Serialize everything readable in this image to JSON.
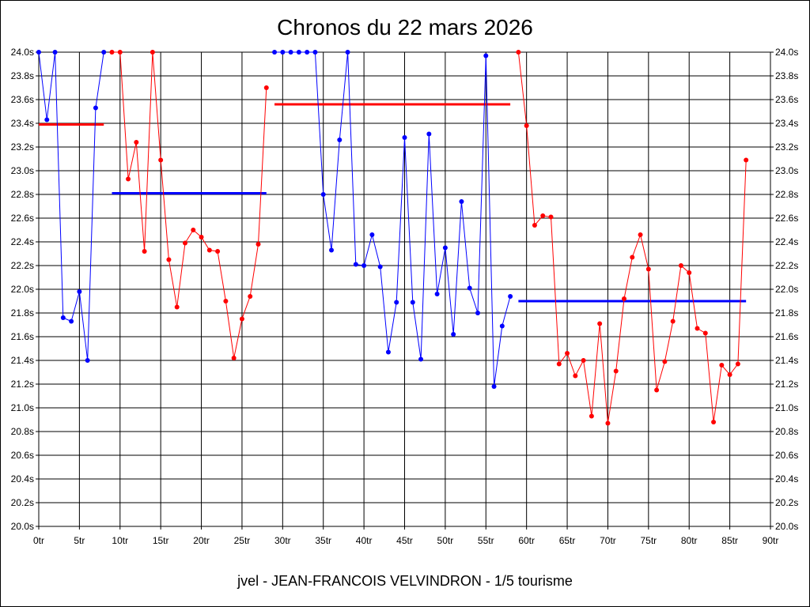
{
  "chart_data": {
    "type": "line",
    "title": "Chronos du 22 mars 2026",
    "footer": "jvel - JEAN-FRANCOIS VELVINDRON - 1/5 tourisme",
    "xlabel": "",
    "ylabel": "",
    "xlim": [
      0,
      90
    ],
    "ylim": [
      20.0,
      24.0
    ],
    "x_ticks": [
      0,
      5,
      10,
      15,
      20,
      25,
      30,
      35,
      40,
      45,
      50,
      55,
      60,
      65,
      70,
      75,
      80,
      85,
      90
    ],
    "x_tick_labels": [
      "0tr",
      "5tr",
      "10tr",
      "15tr",
      "20tr",
      "25tr",
      "30tr",
      "35tr",
      "40tr",
      "45tr",
      "50tr",
      "55tr",
      "60tr",
      "65tr",
      "70tr",
      "75tr",
      "80tr",
      "85tr",
      "90tr"
    ],
    "y_ticks": [
      20.0,
      20.2,
      20.4,
      20.6,
      20.8,
      21.0,
      21.2,
      21.4,
      21.6,
      21.8,
      22.0,
      22.2,
      22.4,
      22.6,
      22.8,
      23.0,
      23.2,
      23.4,
      23.6,
      23.8,
      24.0
    ],
    "y_tick_labels": [
      "20.0s",
      "20.2s",
      "20.4s",
      "20.6s",
      "20.8s",
      "21.0s",
      "21.2s",
      "21.4s",
      "21.6s",
      "21.8s",
      "22.0s",
      "22.2s",
      "22.4s",
      "22.6s",
      "22.8s",
      "23.0s",
      "23.2s",
      "23.4s",
      "23.6s",
      "23.8s",
      "24.0s"
    ],
    "grid": true,
    "colors": {
      "red": "#ff0000",
      "blue": "#0000ff"
    },
    "series": [
      {
        "color": "#0000ff",
        "x": [
          0,
          1,
          2,
          3,
          4,
          5,
          6,
          7,
          8
        ],
        "y": [
          24.0,
          23.43,
          24.0,
          21.76,
          21.73,
          21.98,
          21.4,
          23.53,
          24.0
        ]
      },
      {
        "color": "#ff0000",
        "x": [
          9,
          10,
          11,
          12,
          13,
          14,
          15,
          16,
          17,
          18,
          19,
          20,
          21,
          22,
          23,
          24,
          25,
          26,
          27,
          28
        ],
        "y": [
          24.0,
          24.0,
          22.93,
          23.24,
          22.32,
          24.0,
          23.09,
          22.25,
          21.85,
          22.39,
          22.5,
          22.44,
          22.33,
          22.32,
          21.9,
          21.42,
          21.75,
          21.94,
          22.38,
          23.7
        ]
      },
      {
        "color": "#0000ff",
        "x": [
          29,
          30,
          31,
          32,
          33,
          34,
          35,
          36,
          37,
          38,
          39,
          40,
          41,
          42,
          43,
          44,
          45,
          46,
          47,
          48,
          49,
          50,
          51,
          52,
          53,
          54,
          55,
          56,
          57,
          58
        ],
        "y": [
          24.0,
          24.0,
          24.0,
          24.0,
          24.0,
          24.0,
          22.8,
          22.33,
          23.26,
          24.0,
          22.21,
          22.2,
          22.46,
          22.19,
          21.47,
          21.89,
          23.28,
          21.89,
          21.41,
          23.31,
          21.96,
          22.35,
          21.62,
          22.74,
          22.01,
          21.8,
          23.97,
          21.18,
          21.69,
          21.94
        ]
      },
      {
        "color": "#ff0000",
        "x": [
          59,
          60,
          61,
          62,
          63,
          64,
          65,
          66,
          67,
          68,
          69,
          70,
          71,
          72,
          73,
          74,
          75,
          76,
          77,
          78,
          79,
          80,
          81,
          82,
          83,
          84,
          85,
          86,
          87
        ],
        "y": [
          24.0,
          23.38,
          22.54,
          22.62,
          22.61,
          21.37,
          21.46,
          21.27,
          21.4,
          20.93,
          21.71,
          20.87,
          21.31,
          21.92,
          22.27,
          22.46,
          22.17,
          21.15,
          21.39,
          21.73,
          22.2,
          22.14,
          21.67,
          21.63,
          20.88,
          21.36,
          21.28,
          21.37,
          23.09
        ]
      }
    ],
    "reference_lines": [
      {
        "color": "#ff0000",
        "x": [
          0,
          8
        ],
        "y": 23.39
      },
      {
        "color": "#0000ff",
        "x": [
          9,
          28
        ],
        "y": 22.81
      },
      {
        "color": "#ff0000",
        "x": [
          29,
          58
        ],
        "y": 23.56
      },
      {
        "color": "#0000ff",
        "x": [
          59,
          87
        ],
        "y": 21.9
      }
    ]
  }
}
